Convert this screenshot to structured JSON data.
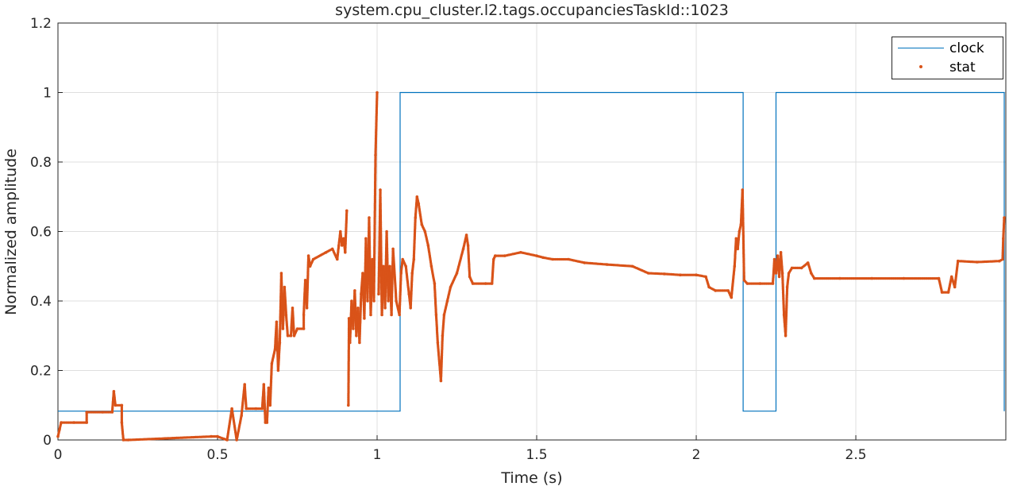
{
  "chart_data": {
    "type": "line",
    "title": "system.cpu_cluster.l2.tags.occupanciesTaskId::1023",
    "xlabel": "Time (s)",
    "ylabel": "Normalized amplitude",
    "xlim": [
      0,
      2.97
    ],
    "ylim": [
      0,
      1.2
    ],
    "xticks": [
      "0",
      "0.5",
      "1",
      "1.5",
      "2",
      "2.5"
    ],
    "xtick_values": [
      0,
      0.5,
      1,
      1.5,
      2,
      2.5
    ],
    "yticks": [
      "0",
      "0.2",
      "0.4",
      "0.6",
      "0.8",
      "1",
      "1.2"
    ],
    "ytick_values": [
      0,
      0.2,
      0.4,
      0.6,
      0.8,
      1,
      1.2
    ],
    "grid": true,
    "legend_location": "top-right",
    "series": [
      {
        "name": "clock",
        "style": "line",
        "color": "#0072BD",
        "points": [
          [
            0,
            0.083
          ],
          [
            1.072,
            0.083
          ],
          [
            1.072,
            1.0
          ],
          [
            2.147,
            1.0
          ],
          [
            2.147,
            0.083
          ],
          [
            2.25,
            0.083
          ],
          [
            2.25,
            1.0
          ],
          [
            2.965,
            1.0
          ],
          [
            2.965,
            0.083
          ]
        ]
      },
      {
        "name": "stat",
        "style": "markers",
        "color": "#D95319",
        "points": [
          [
            0.0,
            0.01
          ],
          [
            0.005,
            0.03
          ],
          [
            0.01,
            0.05
          ],
          [
            0.05,
            0.05
          ],
          [
            0.09,
            0.05
          ],
          [
            0.09,
            0.08
          ],
          [
            0.14,
            0.08
          ],
          [
            0.17,
            0.08
          ],
          [
            0.175,
            0.14
          ],
          [
            0.18,
            0.1
          ],
          [
            0.2,
            0.1
          ],
          [
            0.2,
            0.05
          ],
          [
            0.205,
            0.0
          ],
          [
            0.22,
            0.0
          ],
          [
            0.48,
            0.01
          ],
          [
            0.5,
            0.01
          ],
          [
            0.53,
            0.0
          ],
          [
            0.545,
            0.09
          ],
          [
            0.56,
            0.0
          ],
          [
            0.575,
            0.07
          ],
          [
            0.585,
            0.16
          ],
          [
            0.59,
            0.09
          ],
          [
            0.62,
            0.09
          ],
          [
            0.64,
            0.09
          ],
          [
            0.645,
            0.16
          ],
          [
            0.65,
            0.05
          ],
          [
            0.655,
            0.05
          ],
          [
            0.66,
            0.15
          ],
          [
            0.665,
            0.1
          ],
          [
            0.67,
            0.22
          ],
          [
            0.68,
            0.26
          ],
          [
            0.685,
            0.34
          ],
          [
            0.69,
            0.2
          ],
          [
            0.695,
            0.28
          ],
          [
            0.7,
            0.48
          ],
          [
            0.705,
            0.32
          ],
          [
            0.71,
            0.44
          ],
          [
            0.715,
            0.36
          ],
          [
            0.72,
            0.3
          ],
          [
            0.73,
            0.3
          ],
          [
            0.735,
            0.38
          ],
          [
            0.74,
            0.3
          ],
          [
            0.75,
            0.32
          ],
          [
            0.77,
            0.32
          ],
          [
            0.77,
            0.36
          ],
          [
            0.775,
            0.46
          ],
          [
            0.78,
            0.38
          ],
          [
            0.785,
            0.53
          ],
          [
            0.79,
            0.5
          ],
          [
            0.8,
            0.52
          ],
          [
            0.84,
            0.54
          ],
          [
            0.86,
            0.55
          ],
          [
            0.875,
            0.52
          ],
          [
            0.88,
            0.56
          ],
          [
            0.885,
            0.6
          ],
          [
            0.89,
            0.56
          ],
          [
            0.895,
            0.58
          ],
          [
            0.9,
            0.54
          ],
          [
            0.905,
            0.66
          ],
          [
            0.91,
            0.1
          ],
          [
            0.912,
            0.35
          ],
          [
            0.915,
            0.28
          ],
          [
            0.92,
            0.4
          ],
          [
            0.925,
            0.32
          ],
          [
            0.93,
            0.43
          ],
          [
            0.935,
            0.3
          ],
          [
            0.94,
            0.38
          ],
          [
            0.945,
            0.28
          ],
          [
            0.95,
            0.42
          ],
          [
            0.955,
            0.48
          ],
          [
            0.96,
            0.35
          ],
          [
            0.965,
            0.58
          ],
          [
            0.97,
            0.4
          ],
          [
            0.975,
            0.64
          ],
          [
            0.98,
            0.36
          ],
          [
            0.985,
            0.52
          ],
          [
            0.99,
            0.4
          ],
          [
            0.995,
            0.82
          ],
          [
            1.0,
            1.0
          ],
          [
            1.005,
            0.42
          ],
          [
            1.01,
            0.72
          ],
          [
            1.015,
            0.36
          ],
          [
            1.02,
            0.5
          ],
          [
            1.025,
            0.38
          ],
          [
            1.03,
            0.6
          ],
          [
            1.035,
            0.4
          ],
          [
            1.04,
            0.5
          ],
          [
            1.045,
            0.36
          ],
          [
            1.05,
            0.55
          ],
          [
            1.06,
            0.4
          ],
          [
            1.07,
            0.36
          ],
          [
            1.075,
            0.48
          ],
          [
            1.08,
            0.52
          ],
          [
            1.09,
            0.5
          ],
          [
            1.1,
            0.42
          ],
          [
            1.105,
            0.38
          ],
          [
            1.11,
            0.48
          ],
          [
            1.115,
            0.52
          ],
          [
            1.12,
            0.64
          ],
          [
            1.125,
            0.7
          ],
          [
            1.13,
            0.68
          ],
          [
            1.14,
            0.62
          ],
          [
            1.15,
            0.6
          ],
          [
            1.16,
            0.56
          ],
          [
            1.17,
            0.5
          ],
          [
            1.18,
            0.45
          ],
          [
            1.185,
            0.36
          ],
          [
            1.19,
            0.28
          ],
          [
            1.2,
            0.17
          ],
          [
            1.205,
            0.3
          ],
          [
            1.21,
            0.36
          ],
          [
            1.22,
            0.4
          ],
          [
            1.23,
            0.44
          ],
          [
            1.25,
            0.48
          ],
          [
            1.27,
            0.55
          ],
          [
            1.28,
            0.59
          ],
          [
            1.285,
            0.56
          ],
          [
            1.29,
            0.47
          ],
          [
            1.3,
            0.45
          ],
          [
            1.34,
            0.45
          ],
          [
            1.36,
            0.45
          ],
          [
            1.365,
            0.52
          ],
          [
            1.37,
            0.53
          ],
          [
            1.4,
            0.53
          ],
          [
            1.45,
            0.54
          ],
          [
            1.5,
            0.53
          ],
          [
            1.52,
            0.525
          ],
          [
            1.55,
            0.52
          ],
          [
            1.6,
            0.52
          ],
          [
            1.65,
            0.51
          ],
          [
            1.72,
            0.505
          ],
          [
            1.8,
            0.5
          ],
          [
            1.85,
            0.48
          ],
          [
            1.9,
            0.478
          ],
          [
            1.95,
            0.475
          ],
          [
            2.0,
            0.475
          ],
          [
            2.03,
            0.47
          ],
          [
            2.04,
            0.44
          ],
          [
            2.06,
            0.43
          ],
          [
            2.1,
            0.43
          ],
          [
            2.11,
            0.41
          ],
          [
            2.12,
            0.5
          ],
          [
            2.125,
            0.58
          ],
          [
            2.13,
            0.55
          ],
          [
            2.135,
            0.6
          ],
          [
            2.14,
            0.62
          ],
          [
            2.145,
            0.72
          ],
          [
            2.15,
            0.46
          ],
          [
            2.16,
            0.45
          ],
          [
            2.2,
            0.45
          ],
          [
            2.24,
            0.45
          ],
          [
            2.245,
            0.52
          ],
          [
            2.25,
            0.48
          ],
          [
            2.255,
            0.53
          ],
          [
            2.26,
            0.47
          ],
          [
            2.265,
            0.54
          ],
          [
            2.27,
            0.48
          ],
          [
            2.275,
            0.36
          ],
          [
            2.28,
            0.3
          ],
          [
            2.285,
            0.44
          ],
          [
            2.29,
            0.48
          ],
          [
            2.3,
            0.495
          ],
          [
            2.33,
            0.495
          ],
          [
            2.35,
            0.51
          ],
          [
            2.36,
            0.48
          ],
          [
            2.37,
            0.465
          ],
          [
            2.45,
            0.465
          ],
          [
            2.55,
            0.465
          ],
          [
            2.65,
            0.465
          ],
          [
            2.76,
            0.465
          ],
          [
            2.77,
            0.425
          ],
          [
            2.79,
            0.425
          ],
          [
            2.8,
            0.47
          ],
          [
            2.81,
            0.44
          ],
          [
            2.82,
            0.515
          ],
          [
            2.88,
            0.512
          ],
          [
            2.95,
            0.515
          ],
          [
            2.96,
            0.52
          ],
          [
            2.962,
            0.58
          ],
          [
            2.965,
            0.64
          ]
        ]
      }
    ]
  }
}
